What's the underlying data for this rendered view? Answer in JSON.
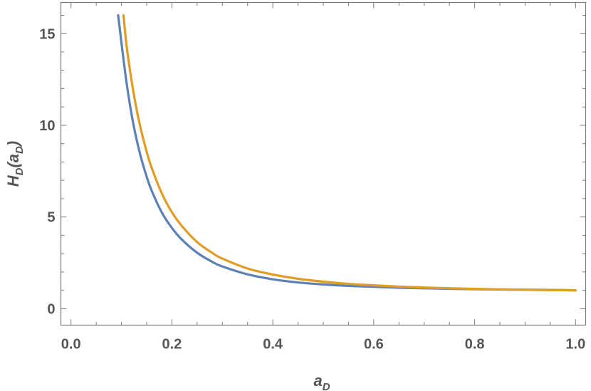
{
  "chart_data": {
    "type": "line",
    "xlabel": {
      "main": "a",
      "sub": "D"
    },
    "ylabel": {
      "main": "H",
      "sub": "D",
      "open": "(",
      "arg_main": "a",
      "arg_sub": "D",
      "close": ")"
    },
    "xlim": [
      -0.02,
      1.02
    ],
    "ylim": [
      -0.9,
      16.7
    ],
    "x_ticks": [
      0.0,
      0.2,
      0.4,
      0.6,
      0.8,
      1.0
    ],
    "x_tick_labels": [
      "0.0",
      "0.2",
      "0.4",
      "0.6",
      "0.8",
      "1.0"
    ],
    "y_ticks": [
      0,
      5,
      10,
      15
    ],
    "y_tick_labels": [
      "0",
      "5",
      "10",
      "15"
    ],
    "x_minor_step": 0.05,
    "y_minor_step": 1,
    "grid": false,
    "series": [
      {
        "color": "#5e81b5",
        "x": [
          0.0935,
          0.1,
          0.11,
          0.12,
          0.13,
          0.14,
          0.15,
          0.16,
          0.18,
          0.2,
          0.22,
          0.25,
          0.28,
          0.3,
          0.35,
          0.4,
          0.45,
          0.5,
          0.55,
          0.6,
          0.65,
          0.7,
          0.75,
          0.8,
          0.85,
          0.9,
          0.95,
          1.0
        ],
        "y": [
          16.0,
          14.51,
          12.35,
          10.61,
          9.23,
          8.12,
          7.2,
          6.43,
          5.25,
          4.4,
          3.76,
          3.05,
          2.55,
          2.3,
          1.87,
          1.6,
          1.43,
          1.32,
          1.24,
          1.19,
          1.14,
          1.11,
          1.08,
          1.06,
          1.04,
          1.03,
          1.02,
          1.0
        ]
      },
      {
        "color": "#e19c24",
        "x": [
          0.1042,
          0.11,
          0.12,
          0.13,
          0.14,
          0.15,
          0.16,
          0.18,
          0.2,
          0.22,
          0.25,
          0.28,
          0.3,
          0.35,
          0.4,
          0.45,
          0.5,
          0.55,
          0.6,
          0.65,
          0.7,
          0.75,
          0.8,
          0.85,
          0.9,
          0.95,
          1.0
        ],
        "y": [
          16.0,
          14.39,
          12.45,
          10.88,
          9.62,
          8.56,
          7.68,
          6.29,
          5.26,
          4.5,
          3.63,
          3.04,
          2.73,
          2.19,
          1.86,
          1.63,
          1.47,
          1.35,
          1.27,
          1.2,
          1.15,
          1.11,
          1.08,
          1.05,
          1.03,
          1.01,
          1.0
        ]
      }
    ]
  }
}
